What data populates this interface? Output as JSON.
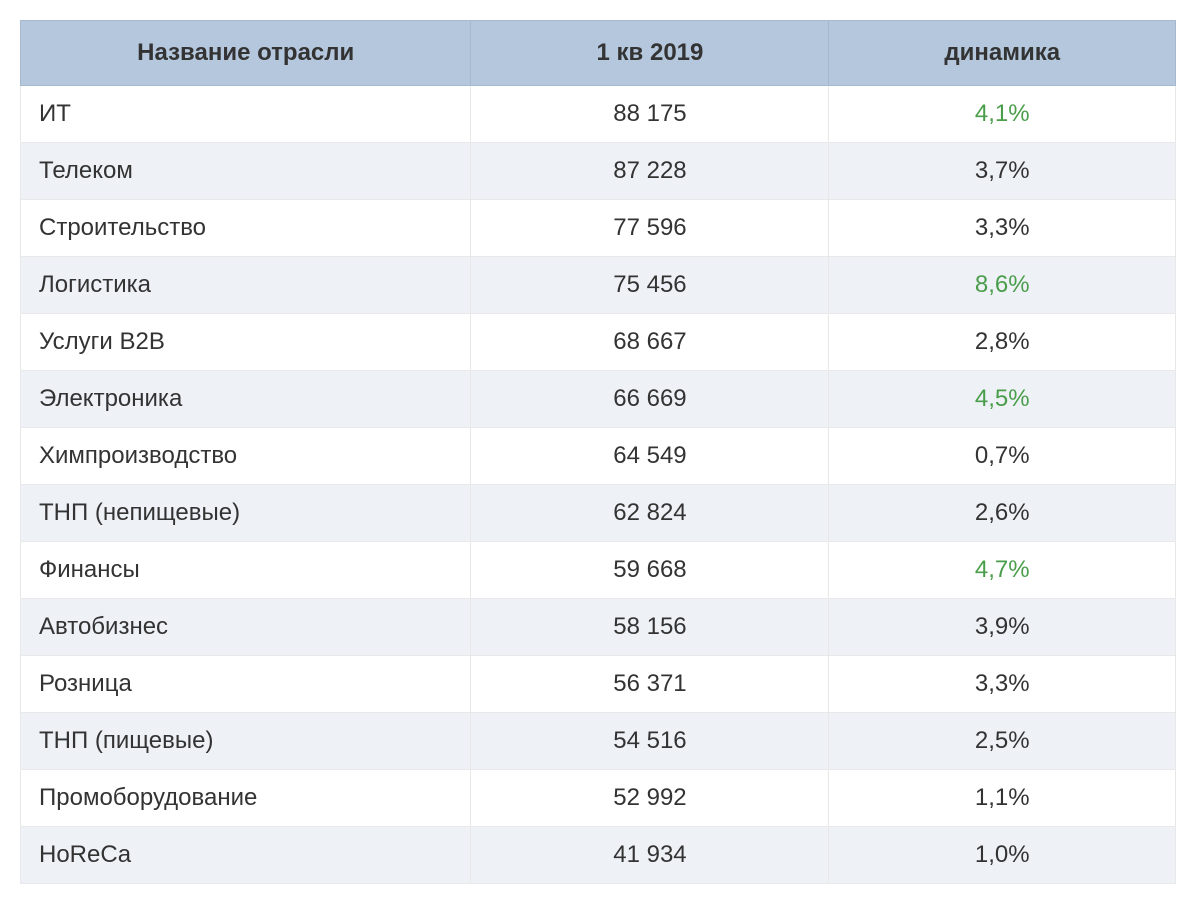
{
  "table": {
    "type": "table",
    "header_bg_color": "#b4c7dc",
    "header_text_color": "#333333",
    "row_odd_bg": "#ffffff",
    "row_even_bg": "#eef2f7",
    "border_color": "#e8e8e8",
    "text_color": "#333333",
    "highlight_color": "#4a9d4a",
    "font_size": 24,
    "columns": [
      {
        "label": "Название отрасли",
        "align": "left",
        "width_pct": 39
      },
      {
        "label": "1 кв 2019",
        "align": "center",
        "width_pct": 31
      },
      {
        "label": "динамика",
        "align": "center",
        "width_pct": 30
      }
    ],
    "rows": [
      {
        "name": "ИТ",
        "value": "88 175",
        "dynamic": "4,1%",
        "highlight": true
      },
      {
        "name": "Телеком",
        "value": "87 228",
        "dynamic": "3,7%",
        "highlight": false
      },
      {
        "name": "Строительство",
        "value": "77 596",
        "dynamic": "3,3%",
        "highlight": false
      },
      {
        "name": "Логистика",
        "value": "75 456",
        "dynamic": "8,6%",
        "highlight": true
      },
      {
        "name": "Услуги B2B",
        "value": "68 667",
        "dynamic": "2,8%",
        "highlight": false
      },
      {
        "name": "Электроника",
        "value": "66 669",
        "dynamic": "4,5%",
        "highlight": true
      },
      {
        "name": "Химпроизводство",
        "value": "64 549",
        "dynamic": "0,7%",
        "highlight": false
      },
      {
        "name": "ТНП (непищевые)",
        "value": "62 824",
        "dynamic": "2,6%",
        "highlight": false
      },
      {
        "name": "Финансы",
        "value": "59 668",
        "dynamic": "4,7%",
        "highlight": true
      },
      {
        "name": "Автобизнес",
        "value": "58 156",
        "dynamic": "3,9%",
        "highlight": false
      },
      {
        "name": "Розница",
        "value": "56 371",
        "dynamic": "3,3%",
        "highlight": false
      },
      {
        "name": "ТНП (пищевые)",
        "value": "54 516",
        "dynamic": "2,5%",
        "highlight": false
      },
      {
        "name": "Промоборудование",
        "value": "52 992",
        "dynamic": "1,1%",
        "highlight": false
      },
      {
        "name": "HoReCa",
        "value": "41 934",
        "dynamic": "1,0%",
        "highlight": false
      }
    ]
  }
}
